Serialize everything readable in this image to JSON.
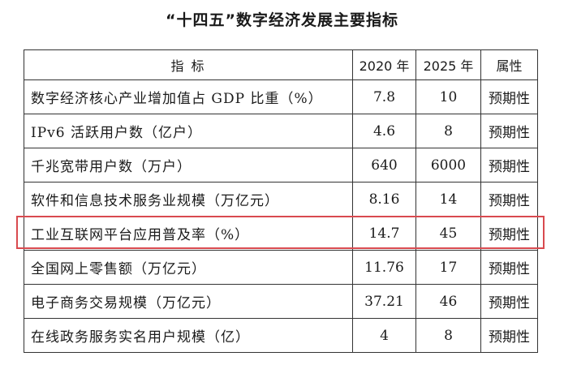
{
  "title": "“十四五”数字经济发展主要指标",
  "table": {
    "headers": [
      "指    标",
      "2020 年",
      "2025 年",
      "属性"
    ],
    "rows": [
      {
        "name": "数字经济核心产业增加值占 GDP 比重（%）",
        "y2020": "7.8",
        "y2025": "10",
        "attr": "预期性"
      },
      {
        "name": "IPv6 活跃用户数（亿户）",
        "y2020": "4.6",
        "y2025": "8",
        "attr": "预期性"
      },
      {
        "name": "千兆宽带用户数（万户）",
        "y2020": "640",
        "y2025": "6000",
        "attr": "预期性"
      },
      {
        "name": "软件和信息技术服务业规模（万亿元）",
        "y2020": "8.16",
        "y2025": "14",
        "attr": "预期性"
      },
      {
        "name": "工业互联网平台应用普及率（%）",
        "y2020": "14.7",
        "y2025": "45",
        "attr": "预期性"
      },
      {
        "name": "全国网上零售额（万亿元）",
        "y2020": "11.76",
        "y2025": "17",
        "attr": "预期性"
      },
      {
        "name": "电子商务交易规模（万亿元）",
        "y2020": "37.21",
        "y2025": "46",
        "attr": "预期性"
      },
      {
        "name": "在线政务服务实名用户规模（亿）",
        "y2020": "4",
        "y2025": "8",
        "attr": "预期性"
      }
    ]
  },
  "highlight_color": "#d94a4f"
}
